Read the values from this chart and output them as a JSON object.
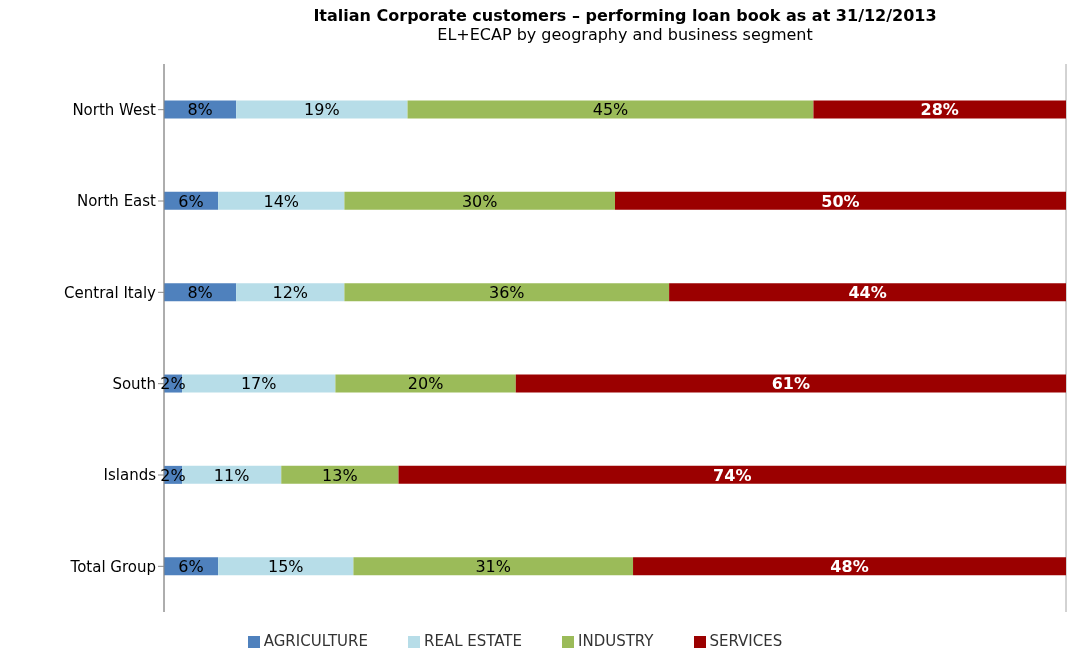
{
  "chart_data": {
    "type": "bar",
    "orientation": "horizontal",
    "stacked": true,
    "title": "Italian Corporate customers – performing loan book as at 31/12/2013",
    "subtitle": "EL+ECAP by geography and business segment",
    "categories": [
      "North West",
      "North East",
      "Central Italy",
      "South",
      "Islands",
      "Total Group"
    ],
    "series": [
      {
        "name": "AGRICULTURE",
        "color": "#4f81bd",
        "values": [
          8,
          6,
          8,
          2,
          2,
          6
        ],
        "value_labels": [
          "8%",
          "6%",
          "8%",
          "2%",
          "2%",
          "6%"
        ]
      },
      {
        "name": "REAL ESTATE",
        "color": "#b7dde8",
        "values": [
          19,
          14,
          12,
          17,
          11,
          15
        ],
        "value_labels": [
          "19%",
          "14%",
          "12%",
          "17%",
          "11%",
          "15%"
        ]
      },
      {
        "name": "INDUSTRY",
        "color": "#9bbb59",
        "values": [
          45,
          30,
          36,
          20,
          13,
          31
        ],
        "value_labels": [
          "45%",
          "30%",
          "36%",
          "20%",
          "13%",
          "31%"
        ]
      },
      {
        "name": "SERVICES",
        "color": "#9b0000",
        "values": [
          28,
          50,
          44,
          61,
          74,
          48
        ],
        "value_labels": [
          "28%",
          "50%",
          "44%",
          "61%",
          "74%",
          "48%"
        ]
      }
    ],
    "tick_labels": "y",
    "grid": "x",
    "legend": "bottom"
  }
}
